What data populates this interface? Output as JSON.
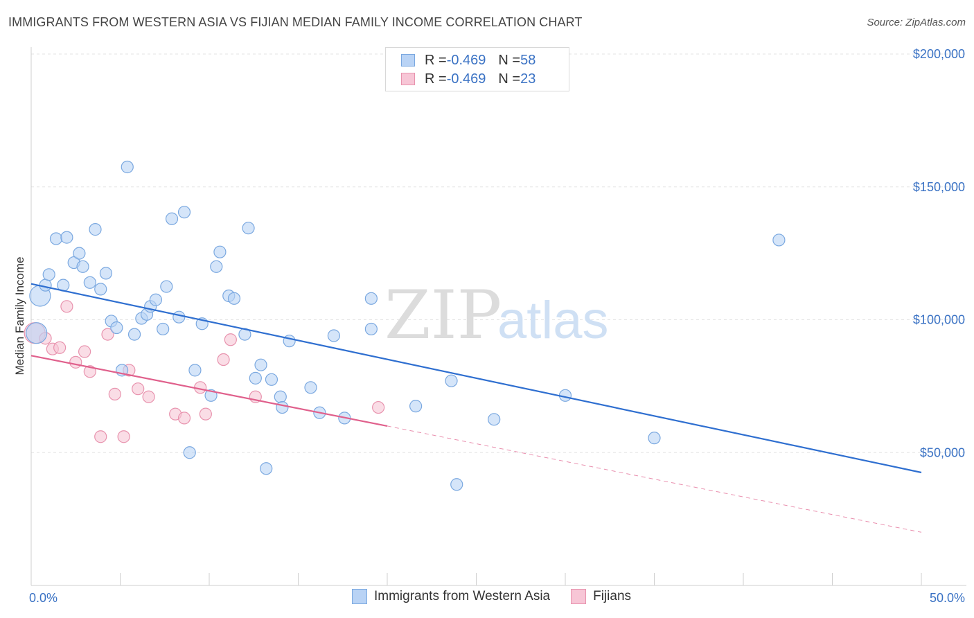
{
  "header": {
    "title": "IMMIGRANTS FROM WESTERN ASIA VS FIJIAN MEDIAN FAMILY INCOME CORRELATION CHART",
    "source": "Source: ZipAtlas.com"
  },
  "watermark": {
    "zip": "ZIP",
    "atlas": "atlas"
  },
  "colors": {
    "blue_fill": "#b9d3f5",
    "blue_stroke": "#7aa8e0",
    "blue_line": "#2f6fd0",
    "pink_fill": "#f7c6d6",
    "pink_stroke": "#e893ae",
    "pink_line": "#e0608c",
    "tick_text": "#3a72c4",
    "grid": "#e3e3e3"
  },
  "legend": {
    "rows": [
      {
        "r_label": "R = ",
        "r_value": "-0.469",
        "n_label": "N = ",
        "n_value": "58"
      },
      {
        "r_label": "R = ",
        "r_value": "-0.469",
        "n_label": "N = ",
        "n_value": "23"
      }
    ]
  },
  "chart_data": {
    "type": "scatter",
    "title": "IMMIGRANTS FROM WESTERN ASIA VS FIJIAN MEDIAN FAMILY INCOME CORRELATION CHART",
    "xlabel": "",
    "ylabel": "Median Family Income",
    "xlim": [
      0,
      50
    ],
    "ylim": [
      0,
      205000
    ],
    "x_tick_labels": [
      "0.0%",
      "50.0%"
    ],
    "y_ticks": [
      50000,
      100000,
      150000,
      200000
    ],
    "y_tick_labels": [
      "$50,000",
      "$100,000",
      "$150,000",
      "$200,000"
    ],
    "grid": true,
    "series": [
      {
        "name": "Immigrants from Western Asia",
        "color": "blue",
        "trend": {
          "x": [
            0,
            50
          ],
          "y": [
            113500,
            42500
          ]
        },
        "points": [
          [
            0.3,
            95000,
            "big"
          ],
          [
            0.5,
            109000,
            "big"
          ],
          [
            0.8,
            113000
          ],
          [
            1.0,
            117000
          ],
          [
            1.4,
            130500
          ],
          [
            1.8,
            113000
          ],
          [
            2.0,
            131000
          ],
          [
            2.4,
            121500
          ],
          [
            2.7,
            125000
          ],
          [
            2.9,
            120000
          ],
          [
            3.3,
            114000
          ],
          [
            3.6,
            134000
          ],
          [
            3.9,
            111500
          ],
          [
            4.2,
            117500
          ],
          [
            4.5,
            99500
          ],
          [
            4.8,
            97000
          ],
          [
            5.1,
            81000
          ],
          [
            5.4,
            157500
          ],
          [
            5.8,
            94500
          ],
          [
            6.2,
            100500
          ],
          [
            6.5,
            102000
          ],
          [
            6.7,
            105000
          ],
          [
            7.0,
            107500
          ],
          [
            7.4,
            96500
          ],
          [
            7.6,
            112500
          ],
          [
            7.9,
            138000
          ],
          [
            8.3,
            101000
          ],
          [
            8.6,
            140500
          ],
          [
            8.9,
            50000
          ],
          [
            9.2,
            81000
          ],
          [
            9.6,
            98500
          ],
          [
            10.1,
            71500
          ],
          [
            10.4,
            120000
          ],
          [
            10.6,
            125500
          ],
          [
            11.1,
            109000
          ],
          [
            11.4,
            108000
          ],
          [
            12.0,
            94500
          ],
          [
            12.2,
            134500
          ],
          [
            12.6,
            78000
          ],
          [
            12.9,
            83000
          ],
          [
            13.2,
            44000
          ],
          [
            13.5,
            77500
          ],
          [
            14.0,
            71000
          ],
          [
            14.1,
            67000
          ],
          [
            14.5,
            92000
          ],
          [
            15.7,
            74500
          ],
          [
            16.2,
            65000
          ],
          [
            17.0,
            94000
          ],
          [
            17.6,
            63000
          ],
          [
            19.1,
            108000
          ],
          [
            19.1,
            96500
          ],
          [
            21.6,
            67500
          ],
          [
            23.6,
            77000
          ],
          [
            23.9,
            38000
          ],
          [
            26.0,
            62500
          ],
          [
            30.0,
            71500
          ],
          [
            35.0,
            55500
          ],
          [
            42.0,
            130000
          ]
        ]
      },
      {
        "name": "Fijians",
        "color": "pink",
        "trend": {
          "x": [
            0,
            20
          ],
          "y": [
            86500,
            60000
          ]
        },
        "trend_extension": {
          "x": [
            20,
            50
          ],
          "y": [
            60000,
            20000
          ]
        },
        "points": [
          [
            0.2,
            95000,
            "big"
          ],
          [
            0.8,
            93000
          ],
          [
            1.2,
            89000
          ],
          [
            1.6,
            89500
          ],
          [
            2.0,
            105000
          ],
          [
            2.5,
            84000
          ],
          [
            3.0,
            88000
          ],
          [
            3.3,
            80500
          ],
          [
            3.9,
            56000
          ],
          [
            4.3,
            94500
          ],
          [
            4.7,
            72000
          ],
          [
            5.2,
            56000
          ],
          [
            5.5,
            81000
          ],
          [
            6.0,
            74000
          ],
          [
            6.6,
            71000
          ],
          [
            8.1,
            64500
          ],
          [
            8.6,
            63000
          ],
          [
            9.5,
            74500
          ],
          [
            9.8,
            64500
          ],
          [
            10.8,
            85000
          ],
          [
            11.2,
            92500
          ],
          [
            12.6,
            71000
          ],
          [
            19.5,
            67000
          ]
        ]
      }
    ]
  },
  "bottom_legend": {
    "items": [
      {
        "label": "Immigrants from Western Asia"
      },
      {
        "label": "Fijians"
      }
    ]
  }
}
